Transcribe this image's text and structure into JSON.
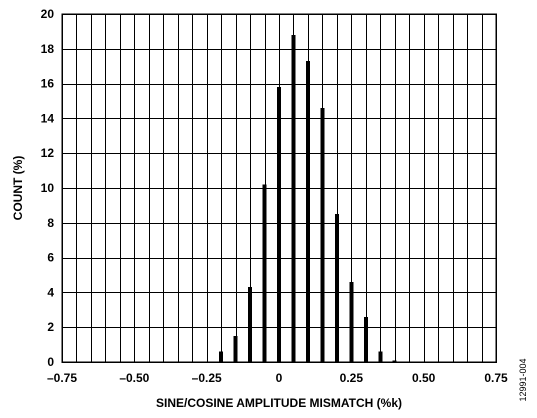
{
  "chart_data": {
    "type": "bar",
    "title": "",
    "xlabel": "SINE/COSINE AMPLITUDE MISMATCH (%k)",
    "ylabel": "COUNT (%)",
    "xlim": [
      -0.75,
      0.75
    ],
    "ylim": [
      0,
      20
    ],
    "grid": true,
    "legend": "none",
    "x_tick_labels": [
      "–0.75",
      "–0.50",
      "–0.25",
      "0",
      "0.25",
      "0.50",
      "0.75"
    ],
    "x_ticks": [
      -0.75,
      -0.5,
      -0.25,
      0,
      0.25,
      0.5,
      0.75
    ],
    "y_ticks": [
      0,
      2,
      4,
      6,
      8,
      10,
      12,
      14,
      16,
      18,
      20
    ],
    "bar_color": "#000000",
    "x": [
      -0.2,
      -0.15,
      -0.1,
      -0.05,
      0.0,
      0.05,
      0.1,
      0.15,
      0.2,
      0.25,
      0.3,
      0.35,
      0.4
    ],
    "values": [
      0.6,
      1.5,
      4.3,
      10.2,
      15.8,
      18.8,
      17.3,
      14.6,
      8.5,
      4.6,
      2.6,
      0.6,
      0.1
    ],
    "figure_id": "12991-004"
  }
}
